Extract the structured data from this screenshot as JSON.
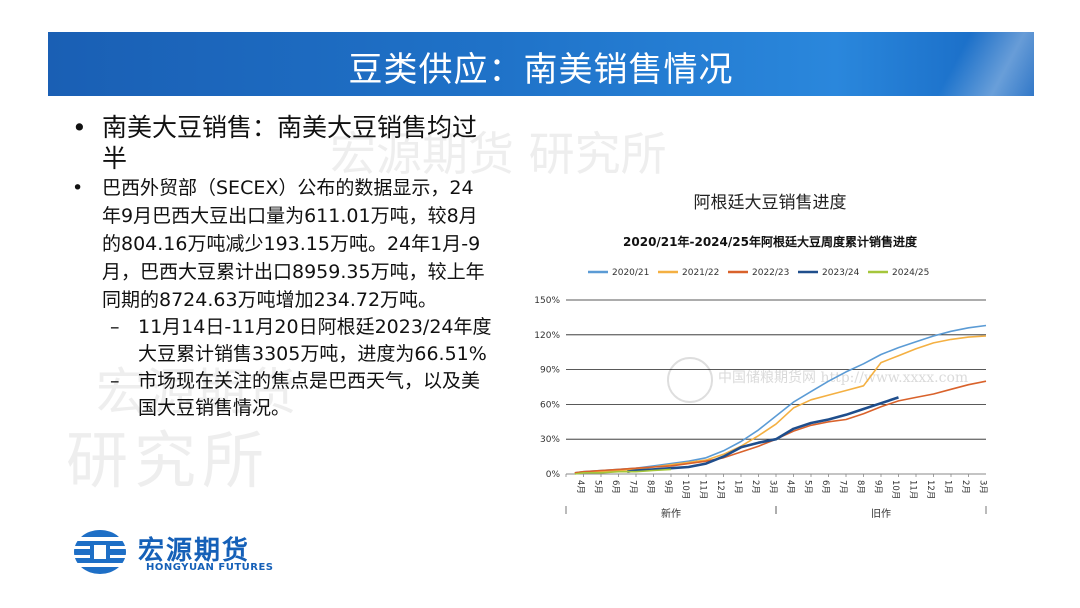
{
  "slide": {
    "title": "豆类供应：南美销售情况",
    "watermarks": [
      "宏源期货 研究所",
      "宏源期货",
      "研究所"
    ]
  },
  "bullets": {
    "b1": "南美大豆销售：南美大豆销售均过半",
    "b2": "巴西外贸部（SECEX）公布的数据显示，24年9月巴西大豆出口量为611.01万吨，较8月的804.16万吨减少193.15万吨。24年1月-9月，巴西大豆累计出口8959.35万吨，较上年同期的8724.63万吨增加234.72万吨。",
    "sub1": "11月14日-11月20日阿根廷2023/24年度大豆累计销售3305万吨，进度为66.51%",
    "sub2": "市场现在关注的焦点是巴西天气，以及美国大豆销售情况。",
    "bullet_symbol": "•",
    "dash_symbol": "–"
  },
  "logo": {
    "cn": "宏源期货",
    "en": "HONGYUAN FUTURES"
  },
  "chart_caption": "阿根廷大豆销售进度",
  "chart_data": {
    "type": "line",
    "title": "2020/21年-2024/25年阿根廷大豆周度累计销售进度",
    "watermark_text": "中国储粮期货网 http://www.xxxx.com",
    "x": [
      "4月",
      "5月",
      "6月",
      "7月",
      "8月",
      "9月",
      "10月",
      "11月",
      "12月",
      "1月",
      "2月",
      "3月",
      "4月",
      "5月",
      "6月",
      "7月",
      "8月",
      "9月",
      "10月",
      "11月",
      "12月",
      "1月",
      "2月",
      "3月"
    ],
    "x_groups": [
      {
        "label": "新作",
        "from": 0,
        "to": 11
      },
      {
        "label": "旧作",
        "from": 12,
        "to": 23
      }
    ],
    "ylim": [
      0,
      150
    ],
    "yticks": [
      "0%",
      "30%",
      "60%",
      "90%",
      "120%",
      "150%"
    ],
    "ytick_values": [
      0,
      30,
      60,
      90,
      120,
      150
    ],
    "grid": true,
    "legend_position": "top",
    "series": [
      {
        "name": "2020/21",
        "color": "#5b9bd5",
        "x": [
          0.5,
          1,
          2,
          3,
          4,
          5,
          6,
          7,
          8,
          9,
          10,
          11,
          12,
          13,
          14,
          15,
          16,
          17,
          18,
          19,
          20,
          21,
          22,
          23,
          24
        ],
        "y": [
          1,
          2,
          3,
          4,
          5,
          7,
          9,
          11,
          14,
          20,
          28,
          38,
          50,
          62,
          71,
          80,
          88,
          95,
          103,
          109,
          114,
          119,
          123,
          126,
          128
        ]
      },
      {
        "name": "2021/22",
        "color": "#f4b042",
        "x": [
          0.5,
          1,
          2,
          3,
          4,
          5,
          6,
          7,
          8,
          9,
          10,
          11,
          12,
          13,
          14,
          15,
          16,
          17,
          18,
          19,
          20,
          21,
          22,
          23,
          24
        ],
        "y": [
          1,
          1,
          2,
          3,
          4,
          6,
          8,
          10,
          12,
          17,
          24,
          33,
          43,
          57,
          64,
          68,
          72,
          76,
          96,
          102,
          108,
          113,
          116,
          118,
          119
        ]
      },
      {
        "name": "2022/23",
        "color": "#d9622b",
        "x": [
          0.5,
          1,
          2,
          3,
          4,
          5,
          6,
          7,
          8,
          9,
          10,
          11,
          12,
          13,
          14,
          15,
          16,
          17,
          18,
          19,
          20,
          21,
          22,
          23,
          24
        ],
        "y": [
          1,
          2,
          3,
          4,
          5,
          6,
          7,
          9,
          11,
          14,
          19,
          24,
          30,
          37,
          42,
          45,
          47,
          52,
          58,
          63,
          66,
          69,
          73,
          77,
          80
        ]
      },
      {
        "name": "2023/24",
        "color": "#1f4e8c",
        "x": [
          3.5,
          4,
          5,
          6,
          7,
          8,
          9,
          10,
          11,
          12,
          13,
          14,
          15,
          16,
          17,
          18,
          19
        ],
        "y": [
          2,
          3,
          4,
          5,
          6,
          9,
          15,
          23,
          27,
          30,
          39,
          44,
          47,
          51,
          56,
          61,
          66
        ]
      },
      {
        "name": "2024/25",
        "color": "#a5c63b",
        "x": [
          0.5,
          1,
          2,
          3,
          4,
          5,
          6
        ],
        "y": [
          0,
          1,
          1,
          2,
          2,
          3,
          4
        ]
      }
    ]
  }
}
